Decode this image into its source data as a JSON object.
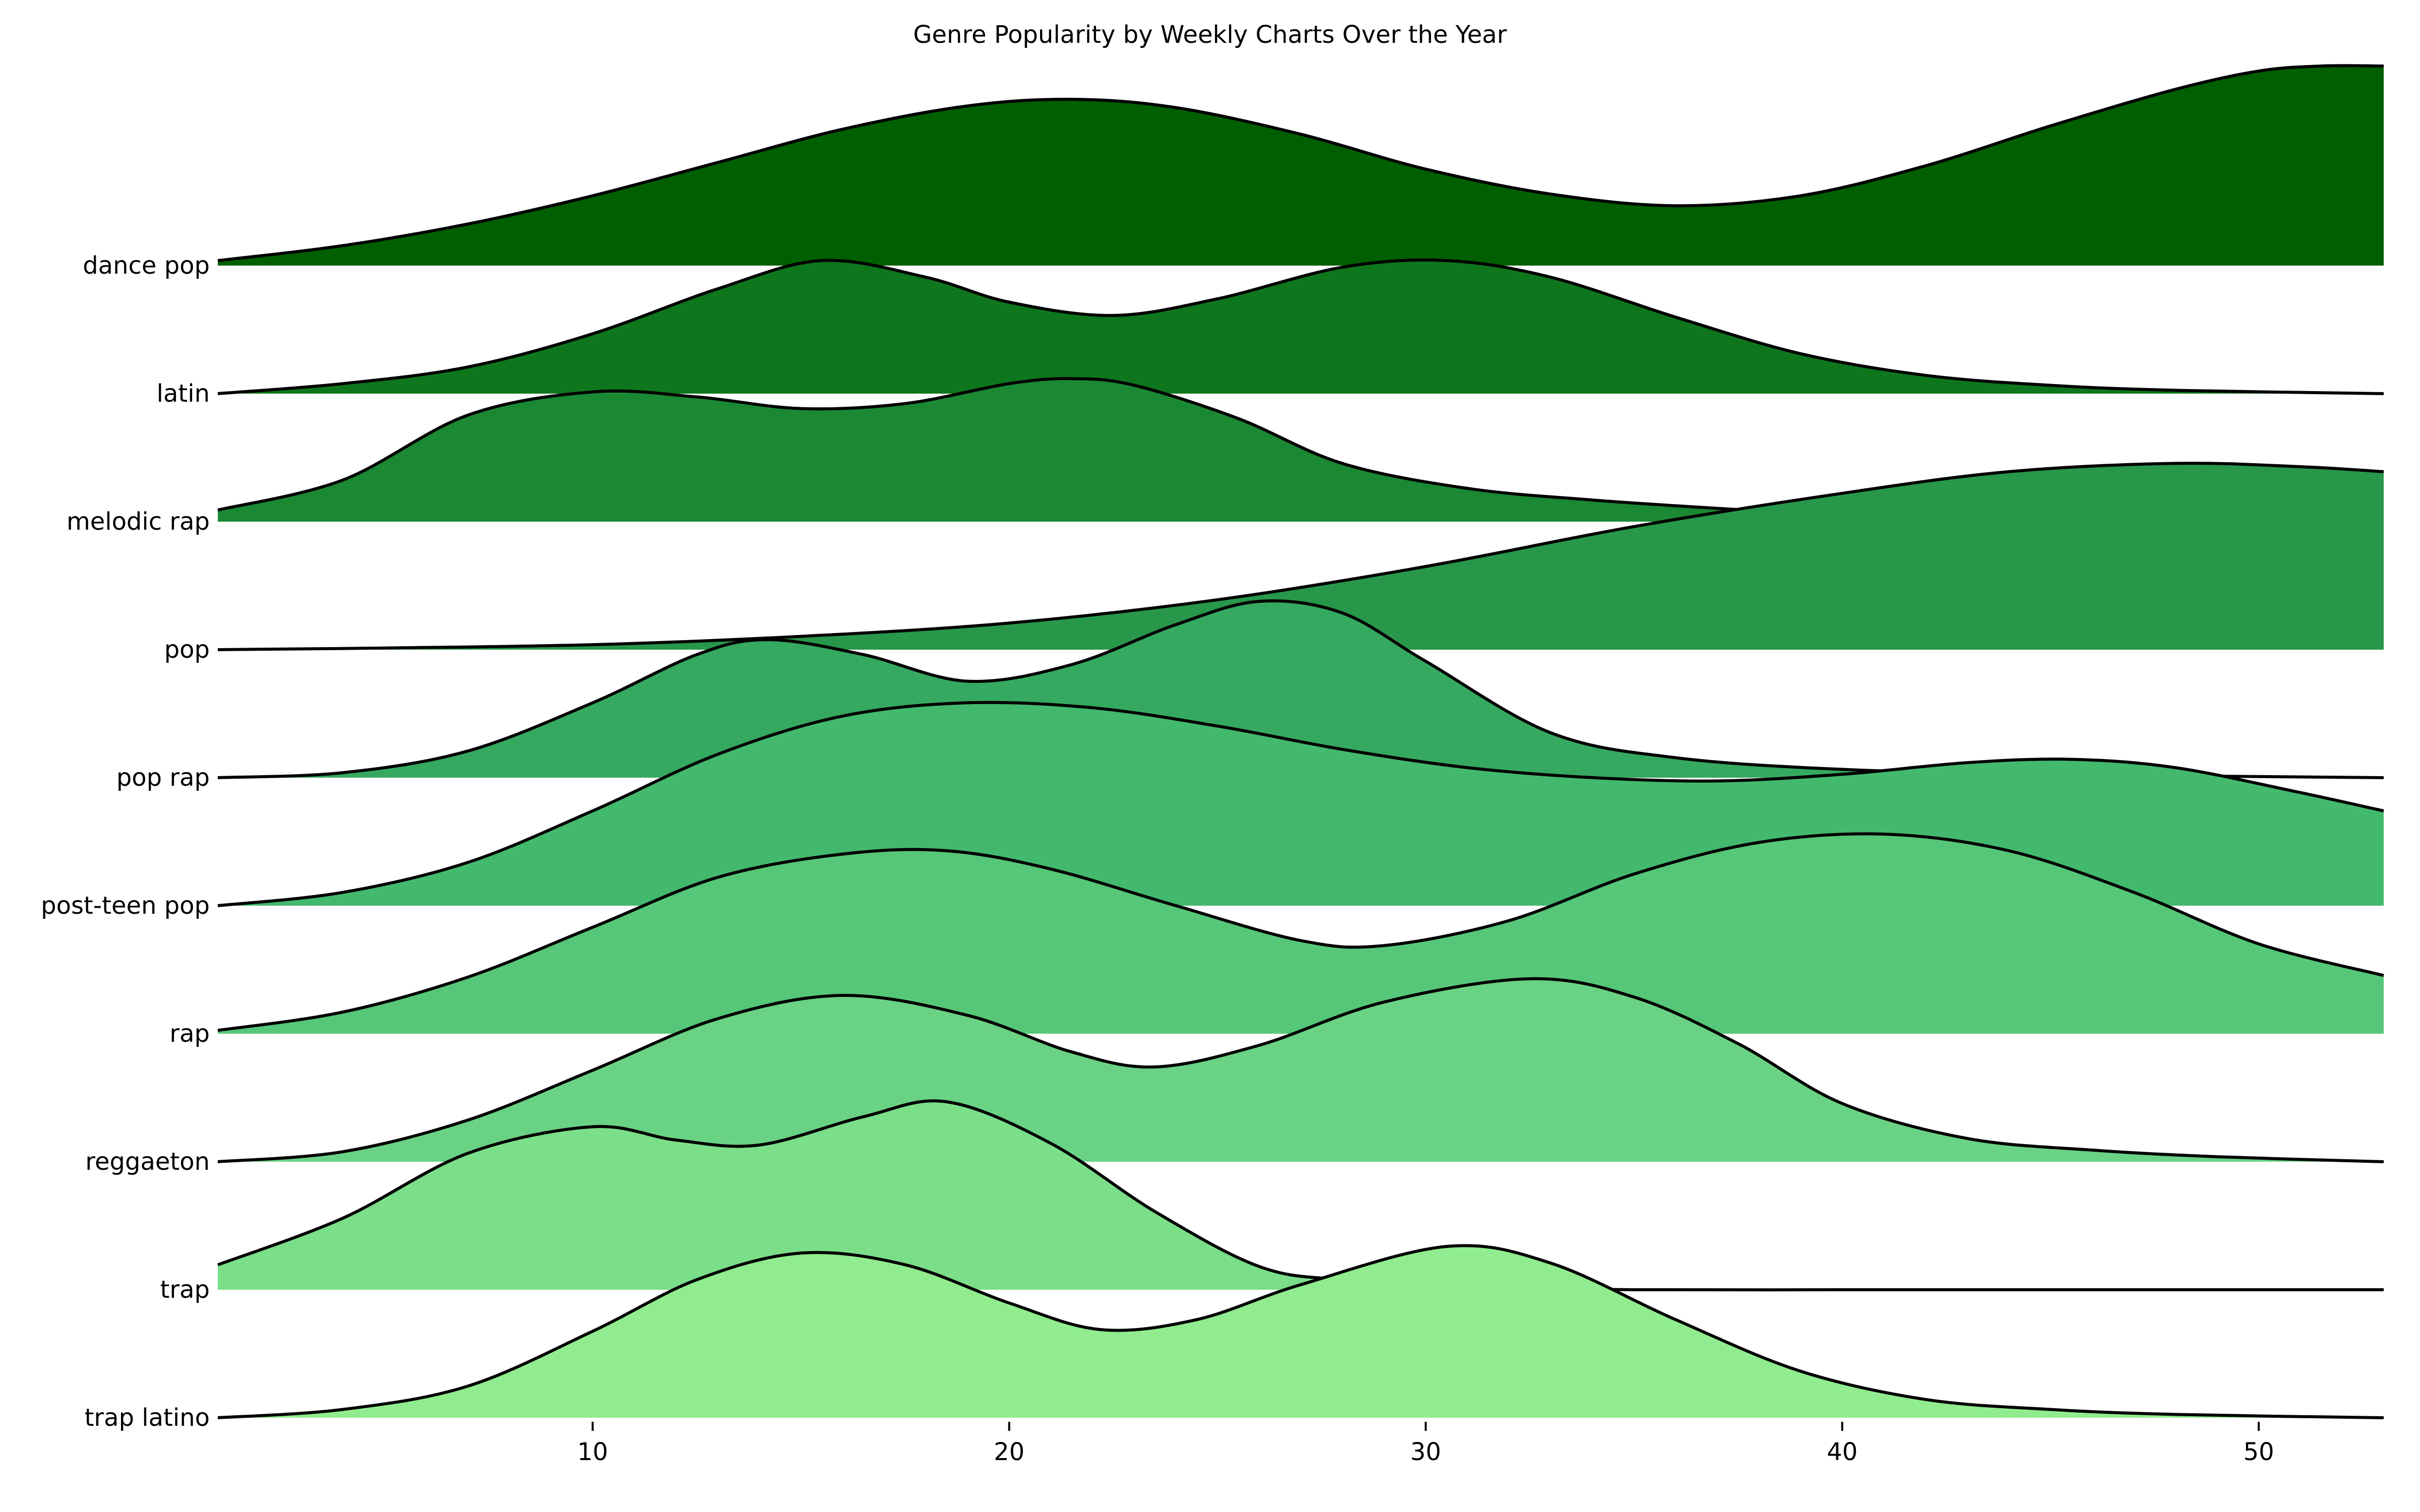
{
  "chart_data": {
    "type": "area",
    "subtype": "ridgeline",
    "title": "Genre Popularity by Weekly Charts Over the Year",
    "xlabel": "",
    "ylabel": "",
    "xlim": [
      1,
      53
    ],
    "xticks": [
      10,
      20,
      30,
      40,
      50
    ],
    "grid": false,
    "legend": "none",
    "series": [
      {
        "name": "dance pop",
        "color": "#005f00",
        "x": [
          1,
          4,
          7,
          10,
          13,
          16,
          19,
          21.5,
          24,
          27,
          30,
          33,
          36,
          39,
          42,
          45,
          48,
          50,
          51.5,
          53
        ],
        "density": [
          0.03,
          0.12,
          0.25,
          0.42,
          0.62,
          0.82,
          0.96,
          1.0,
          0.95,
          0.79,
          0.58,
          0.43,
          0.36,
          0.42,
          0.6,
          0.84,
          1.06,
          1.17,
          1.2,
          1.2
        ]
      },
      {
        "name": "latin",
        "color": "#0e761c",
        "x": [
          1,
          4,
          7,
          10,
          13,
          15.5,
          18,
          20,
          22.5,
          25,
          28,
          30.5,
          33,
          36,
          39,
          42,
          45,
          48,
          53
        ],
        "density": [
          0.0,
          0.06,
          0.16,
          0.36,
          0.63,
          0.8,
          0.7,
          0.55,
          0.47,
          0.57,
          0.76,
          0.8,
          0.7,
          0.46,
          0.24,
          0.11,
          0.05,
          0.02,
          0.0
        ]
      },
      {
        "name": "melodic rap",
        "color": "#1b8833",
        "x": [
          1,
          4,
          7,
          10,
          12.5,
          15,
          17.5,
          20,
          21.5,
          23,
          25.5,
          28,
          31,
          34,
          37,
          41
        ],
        "density": [
          0.07,
          0.25,
          0.64,
          0.78,
          0.75,
          0.68,
          0.71,
          0.83,
          0.86,
          0.82,
          0.62,
          0.35,
          0.2,
          0.13,
          0.08,
          0.02
        ]
      },
      {
        "name": "pop",
        "color": "#28974a",
        "x": [
          1,
          5,
          10,
          15,
          20,
          25,
          30,
          35,
          40,
          44,
          48,
          51,
          53
        ],
        "density": [
          0.0,
          0.01,
          0.03,
          0.08,
          0.16,
          0.3,
          0.5,
          0.74,
          0.94,
          1.07,
          1.12,
          1.1,
          1.07
        ]
      },
      {
        "name": "pop rap",
        "color": "#35a960",
        "x": [
          1,
          4,
          7,
          10,
          12.5,
          14.2,
          16.5,
          19,
          21.5,
          24,
          26,
          28,
          30,
          33,
          36,
          40,
          45,
          53
        ],
        "density": [
          0.0,
          0.03,
          0.16,
          0.45,
          0.74,
          0.83,
          0.74,
          0.58,
          0.68,
          0.92,
          1.06,
          0.99,
          0.7,
          0.27,
          0.12,
          0.05,
          0.02,
          0.0
        ]
      },
      {
        "name": "post-teen pop",
        "color": "#43b96e",
        "x": [
          1,
          4,
          7,
          10,
          13,
          16,
          19,
          22,
          25,
          28,
          31,
          34,
          37,
          40,
          43,
          45.5,
          48,
          51,
          53
        ],
        "density": [
          0.0,
          0.08,
          0.26,
          0.57,
          0.91,
          1.14,
          1.22,
          1.19,
          1.08,
          0.94,
          0.83,
          0.77,
          0.75,
          0.79,
          0.86,
          0.88,
          0.83,
          0.68,
          0.57
        ]
      },
      {
        "name": "rap",
        "color": "#56c778",
        "x": [
          1,
          4,
          7,
          10,
          13,
          16,
          18.5,
          21,
          24,
          27,
          29,
          32,
          35,
          38,
          41,
          44,
          47,
          50,
          53
        ],
        "density": [
          0.02,
          0.13,
          0.34,
          0.64,
          0.94,
          1.08,
          1.1,
          0.99,
          0.77,
          0.56,
          0.53,
          0.68,
          0.96,
          1.15,
          1.2,
          1.1,
          0.85,
          0.54,
          0.35
        ]
      },
      {
        "name": "reggaeton",
        "color": "#6ad284",
        "x": [
          1,
          4,
          7,
          10,
          13,
          16,
          19,
          21.5,
          23.5,
          26,
          29,
          32.5,
          35,
          37.5,
          40,
          43,
          46,
          49,
          53
        ],
        "density": [
          0.0,
          0.06,
          0.25,
          0.55,
          0.86,
          1.0,
          0.88,
          0.66,
          0.57,
          0.7,
          0.96,
          1.1,
          0.99,
          0.71,
          0.35,
          0.14,
          0.07,
          0.03,
          0.0
        ]
      },
      {
        "name": "trap",
        "color": "#7bde89",
        "x": [
          1,
          4,
          7,
          10,
          12,
          14,
          16.5,
          18.5,
          21,
          23.5,
          26,
          28,
          31,
          35,
          40,
          45,
          53
        ],
        "density": [
          0.15,
          0.43,
          0.82,
          0.98,
          0.9,
          0.87,
          1.04,
          1.13,
          0.88,
          0.47,
          0.14,
          0.06,
          0.02,
          0.0,
          0.0,
          0.0,
          0.0
        ]
      },
      {
        "name": "trap latino",
        "color": "#90ec8e",
        "x": [
          1,
          4,
          7,
          10,
          12.5,
          15,
          17.5,
          20,
          22.2,
          24.5,
          27,
          30.5,
          33,
          36,
          39,
          42,
          45,
          48,
          53
        ],
        "density": [
          0.0,
          0.05,
          0.19,
          0.52,
          0.83,
          0.99,
          0.92,
          0.69,
          0.53,
          0.59,
          0.8,
          1.03,
          0.93,
          0.59,
          0.28,
          0.11,
          0.05,
          0.02,
          0.0
        ]
      }
    ]
  }
}
